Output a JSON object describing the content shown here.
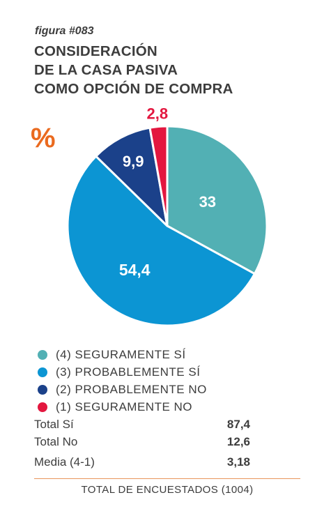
{
  "figure_label": "figura #083",
  "title_lines": [
    "CONSIDERACIÓN",
    "DE LA CASA PASIVA",
    "COMO OPCIÓN DE COMPRA"
  ],
  "unit_symbol": "%",
  "chart_data": {
    "type": "pie",
    "unit": "%",
    "slices": [
      {
        "label": "(4) SEGURAMENTE SÍ",
        "value": 33,
        "display": "33",
        "color": "#52b0b4"
      },
      {
        "label": "(3) PROBABLEMENTE SÍ",
        "value": 54.4,
        "display": "54,4",
        "color": "#0c95d3"
      },
      {
        "label": "(2) PROBABLEMENTE NO",
        "value": 9.9,
        "display": "9,9",
        "color": "#1b418a"
      },
      {
        "label": "(1) SEGURAMENTE NO",
        "value": 2.8,
        "display": "2,8",
        "color": "#e3173f"
      }
    ]
  },
  "stats": [
    {
      "label": "Total Sí",
      "value": "87,4"
    },
    {
      "label": "Total No",
      "value": "12,6"
    },
    {
      "label": "Media (4-1)",
      "value": "3,18"
    }
  ],
  "total": "TOTAL DE ENCUESTADOS (1004)"
}
